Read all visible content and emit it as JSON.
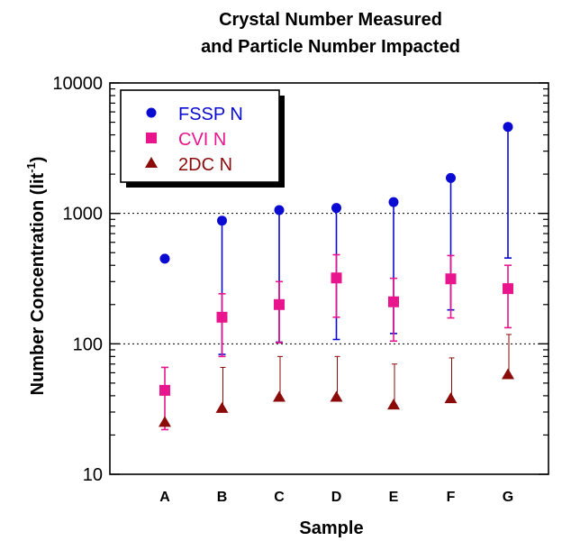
{
  "chart_data": {
    "type": "scatter",
    "title": [
      "Crystal Number Measured",
      "and Particle Number Impacted"
    ],
    "xlabel": "Sample",
    "ylabel": "Number Concentration (lit",
    "ylabel_superscript": "-1",
    "ylabel_close": ")",
    "yscale": "log",
    "ylim": [
      10,
      10000
    ],
    "yticks": [
      10,
      100,
      1000,
      10000
    ],
    "ytick_labels": [
      "10",
      "100",
      "1000",
      "10000"
    ],
    "categories": [
      "A",
      "B",
      "C",
      "D",
      "E",
      "F",
      "G"
    ],
    "grid": "dotted horizontal at 100 and 1000",
    "legend_position": "top-left",
    "series": [
      {
        "name": "FSSP N",
        "marker": "circle",
        "color": "#0a0ad2",
        "values": [
          450,
          880,
          1060,
          1100,
          1220,
          1870,
          4600
        ],
        "error_low": [
          null,
          83,
          103,
          108,
          120,
          182,
          455
        ],
        "error_high": [
          null,
          null,
          null,
          null,
          null,
          null,
          null
        ]
      },
      {
        "name": "CVI N",
        "marker": "square",
        "color": "#e8158c",
        "values": [
          44,
          160,
          200,
          320,
          210,
          315,
          265
        ],
        "error_low": [
          22,
          80,
          102,
          160,
          105,
          158,
          133
        ],
        "error_high": [
          66,
          242,
          300,
          482,
          318,
          475,
          400
        ]
      },
      {
        "name": "2DC N",
        "marker": "triangle",
        "color": "#8b0a0a",
        "values": [
          25,
          32,
          39,
          39,
          34,
          38,
          58
        ],
        "error_low": [
          null,
          null,
          null,
          null,
          null,
          null,
          null
        ],
        "error_high": [
          null,
          66,
          80,
          80,
          70,
          78,
          118
        ]
      }
    ]
  }
}
